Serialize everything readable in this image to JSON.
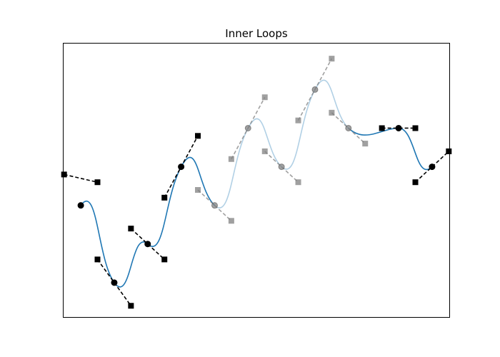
{
  "chart_data": {
    "type": "line",
    "title": "Inner Loops",
    "xlabel": "",
    "ylabel": "",
    "grid": false,
    "axes_ticks": false,
    "xlim": [
      -0.35,
      7.35
    ],
    "ylim": [
      -1.45,
      2.1
    ],
    "colors": {
      "curve": "#1f77b4",
      "curve_faded": "#1f77b4",
      "faded_opacity": 0.35,
      "control": "#000000",
      "control_faded": "#808080"
    },
    "vertices": [
      {
        "x": 0.0,
        "y": 0.0,
        "faded": false
      },
      {
        "x": 0.667,
        "y": -1.0,
        "faded": false
      },
      {
        "x": 1.333,
        "y": -0.5,
        "faded": false
      },
      {
        "x": 2.0,
        "y": 0.5,
        "faded": false
      },
      {
        "x": 2.667,
        "y": 0.0,
        "faded": true
      },
      {
        "x": 3.333,
        "y": 1.0,
        "faded": true
      },
      {
        "x": 4.0,
        "y": 0.5,
        "faded": true
      },
      {
        "x": 4.667,
        "y": 1.5,
        "faded": true
      },
      {
        "x": 5.333,
        "y": 1.0,
        "faded": true
      },
      {
        "x": 6.333,
        "y": 1.0,
        "faded": false
      },
      {
        "x": 7.0,
        "y": 0.5,
        "faded": false
      }
    ],
    "tangent_handles": [
      {
        "in": [
          -0.333,
          0.4
        ],
        "out": [
          0.333,
          0.3
        ],
        "faded": false
      },
      {
        "in": [
          0.333,
          -0.7
        ],
        "out": [
          1.0,
          -1.3
        ],
        "faded": false
      },
      {
        "in": [
          1.0,
          -0.3
        ],
        "out": [
          1.667,
          -0.7
        ],
        "faded": false
      },
      {
        "in": [
          1.667,
          0.1
        ],
        "out": [
          2.333,
          0.9
        ],
        "faded": false
      },
      {
        "in": [
          2.333,
          0.2
        ],
        "out": [
          3.0,
          -0.2
        ],
        "faded": true
      },
      {
        "in": [
          3.0,
          0.6
        ],
        "out": [
          3.667,
          1.4
        ],
        "faded": true
      },
      {
        "in": [
          3.667,
          0.7
        ],
        "out": [
          4.333,
          0.3
        ],
        "faded": true
      },
      {
        "in": [
          4.333,
          1.1
        ],
        "out": [
          5.0,
          1.9
        ],
        "faded": true
      },
      {
        "in": [
          5.0,
          1.2
        ],
        "out": [
          5.667,
          0.8
        ],
        "faded": true
      },
      {
        "in": [
          6.0,
          1.0
        ],
        "out": [
          6.667,
          1.0
        ],
        "faded": false
      },
      {
        "in": [
          6.667,
          0.3
        ],
        "out": [
          7.333,
          0.7
        ],
        "faded": false
      }
    ]
  }
}
